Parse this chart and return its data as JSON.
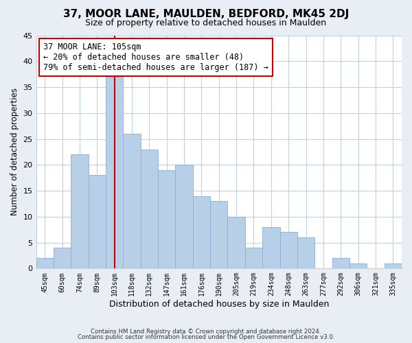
{
  "title": "37, MOOR LANE, MAULDEN, BEDFORD, MK45 2DJ",
  "subtitle": "Size of property relative to detached houses in Maulden",
  "xlabel": "Distribution of detached houses by size in Maulden",
  "ylabel": "Number of detached properties",
  "bar_labels": [
    "45sqm",
    "60sqm",
    "74sqm",
    "89sqm",
    "103sqm",
    "118sqm",
    "132sqm",
    "147sqm",
    "161sqm",
    "176sqm",
    "190sqm",
    "205sqm",
    "219sqm",
    "234sqm",
    "248sqm",
    "263sqm",
    "277sqm",
    "292sqm",
    "306sqm",
    "321sqm",
    "335sqm"
  ],
  "bar_values": [
    2,
    4,
    22,
    18,
    37,
    26,
    23,
    19,
    20,
    14,
    13,
    10,
    4,
    8,
    7,
    6,
    0,
    2,
    1,
    0,
    1
  ],
  "bar_color": "#b8cfe8",
  "bar_edge_color": "#8aafd4",
  "vline_index": 4,
  "vline_color": "#cc0000",
  "annotation_line1": "37 MOOR LANE: 105sqm",
  "annotation_line2": "← 20% of detached houses are smaller (48)",
  "annotation_line3": "79% of semi-detached houses are larger (187) →",
  "annotation_box_edgecolor": "#cc0000",
  "ylim": [
    0,
    45
  ],
  "yticks": [
    0,
    5,
    10,
    15,
    20,
    25,
    30,
    35,
    40,
    45
  ],
  "footer_line1": "Contains HM Land Registry data © Crown copyright and database right 2024.",
  "footer_line2": "Contains public sector information licensed under the Open Government Licence v3.0.",
  "bg_color": "#e8eef4",
  "plot_bg_color": "#ffffff",
  "grid_color": "#c0d0e0"
}
